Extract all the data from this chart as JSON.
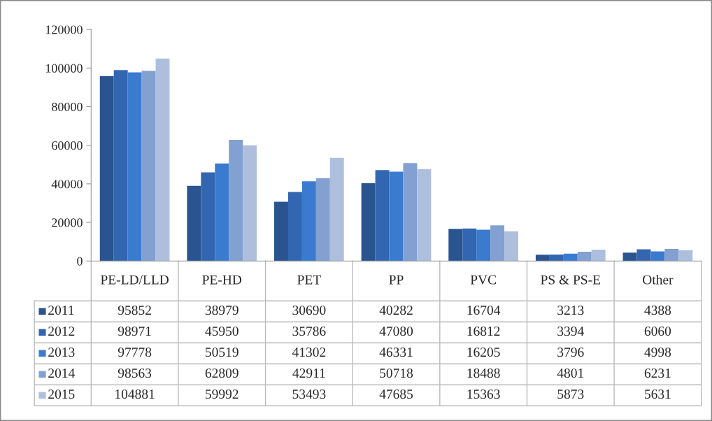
{
  "chart_data": {
    "type": "bar",
    "categories": [
      "PE-LD/LLD",
      "PE-HD",
      "PET",
      "PP",
      "PVC",
      "PS & PS-E",
      "Other"
    ],
    "series": [
      {
        "name": "2011",
        "color": "#2a5490",
        "values": [
          95852,
          38979,
          30690,
          40282,
          16704,
          3213,
          4388
        ]
      },
      {
        "name": "2012",
        "color": "#3366b0",
        "values": [
          98971,
          45950,
          35786,
          47080,
          16812,
          3394,
          6060
        ]
      },
      {
        "name": "2013",
        "color": "#3a7bd0",
        "values": [
          97778,
          50519,
          41302,
          46331,
          16205,
          3796,
          4998
        ]
      },
      {
        "name": "2014",
        "color": "#82a0d0",
        "values": [
          98563,
          62809,
          42911,
          50718,
          18488,
          4801,
          6231
        ]
      },
      {
        "name": "2015",
        "color": "#aebfde",
        "values": [
          104881,
          59992,
          53493,
          47685,
          15363,
          5873,
          5631
        ]
      }
    ],
    "ylim": [
      0,
      120000
    ],
    "yticks": [
      0,
      20000,
      40000,
      60000,
      80000,
      100000,
      120000
    ],
    "grid": false,
    "legend": "bottom",
    "data_labels": true
  }
}
